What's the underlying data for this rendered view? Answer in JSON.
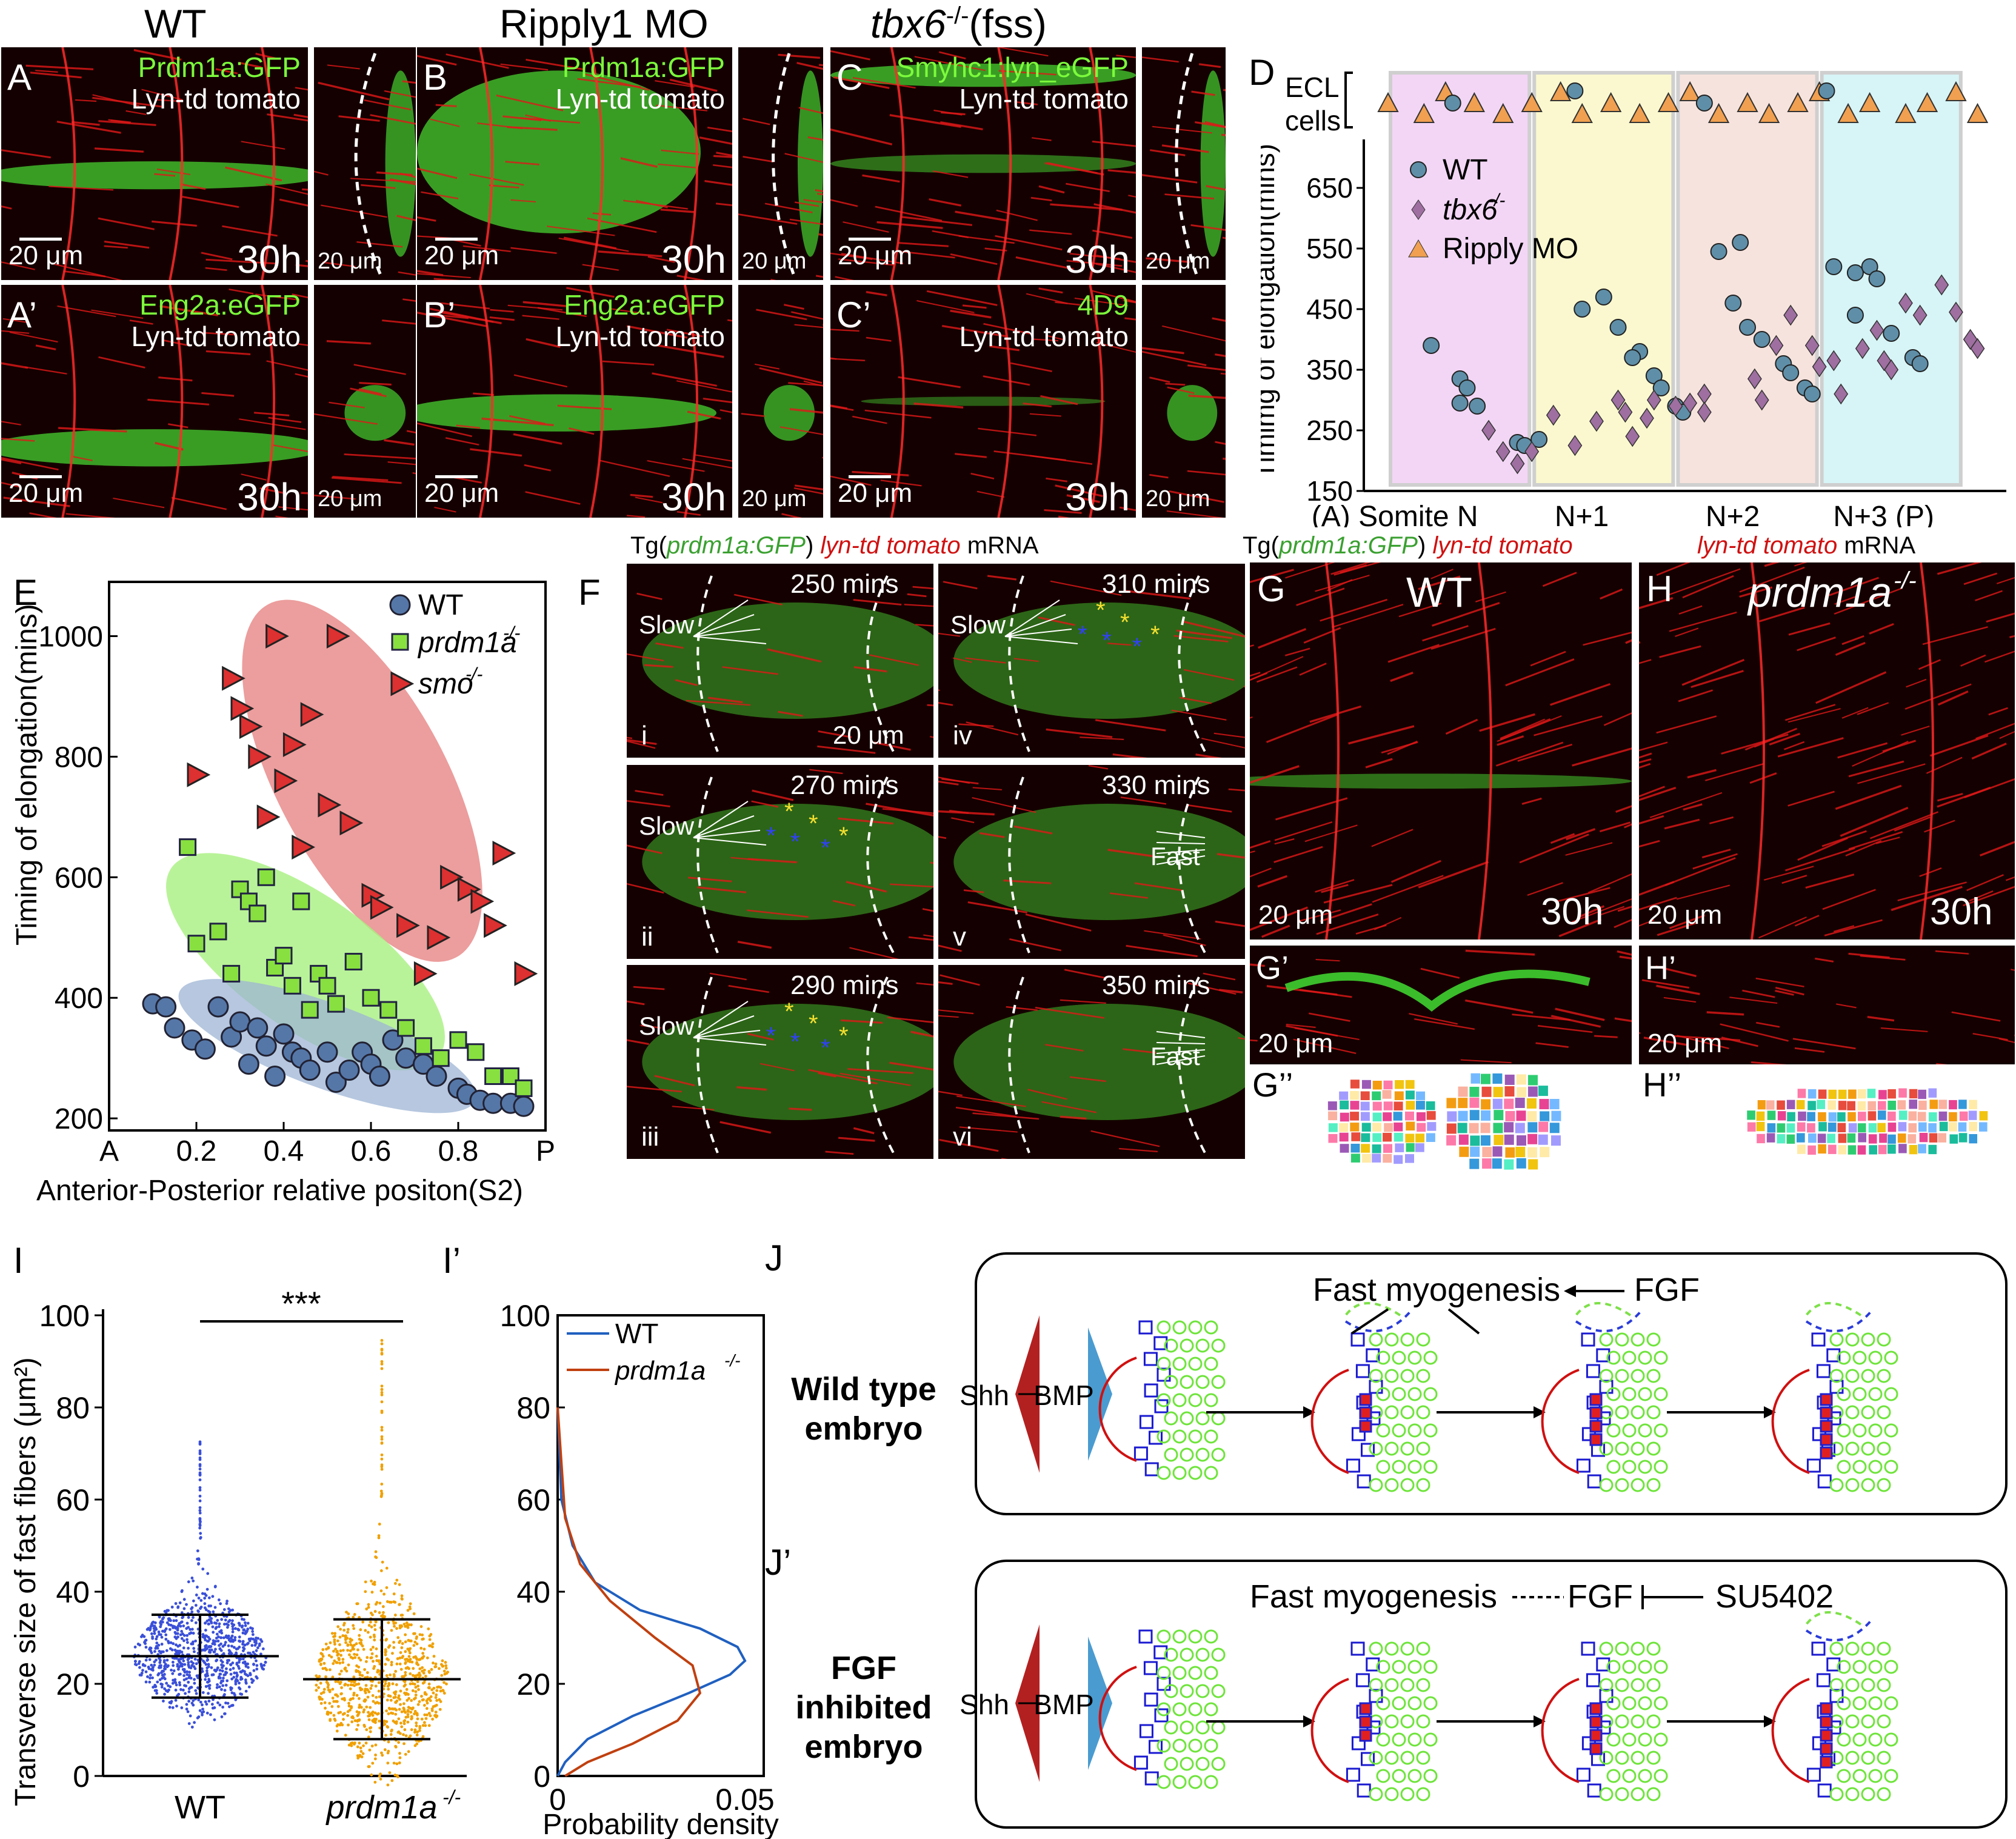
{
  "headers": {
    "wt": "WT",
    "ripply": "Ripply1 MO",
    "tbx6_main": "tbx6",
    "tbx6_sup": "-/-",
    "tbx6_paren": "(fss)"
  },
  "panels": {
    "A": {
      "letter": "A",
      "line1": "Prdm1a:GFP",
      "line2": "Lyn-td tomato",
      "time": "30h",
      "scale": "20 μm",
      "side_scale": "20 μm"
    },
    "B": {
      "letter": "B",
      "line1": "Prdm1a:GFP",
      "line2": "Lyn-td tomato",
      "time": "30h",
      "scale": "20 μm",
      "side_scale": "20 μm"
    },
    "C": {
      "letter": "C",
      "line1": "Smyhc1:lyn_eGFP",
      "line2": "Lyn-td tomato",
      "time": "30h",
      "scale": "20 μm",
      "side_scale": "20 μm"
    },
    "A2": {
      "letter": "A’",
      "line1": "Eng2a:eGFP",
      "line2": "Lyn-td tomato",
      "time": "30h",
      "scale": "20 μm",
      "side_scale": "20 μm"
    },
    "B2": {
      "letter": "B’",
      "line1": "Eng2a:eGFP",
      "line2": "Lyn-td tomato",
      "time": "30h",
      "scale": "20 μm",
      "side_scale": "20 μm"
    },
    "C2": {
      "letter": "C’",
      "line1": "4D9",
      "line2": "Lyn-td tomato",
      "time": "30h",
      "scale": "20 μm",
      "side_scale": "20 μm"
    }
  },
  "panelD": {
    "letter": "D",
    "ecl_label_1": "ECL",
    "ecl_label_2": "cells",
    "ylabel": "Timimg of elongation(mins)",
    "yticks": [
      "650",
      "550",
      "450",
      "350",
      "250",
      "150"
    ],
    "xticks": [
      "(A) Somite N",
      "N+1",
      "N+2",
      "N+3 (P)"
    ],
    "legend": [
      "WT",
      "tbx6",
      "Ripply MO"
    ],
    "legend_sup": "-/-",
    "colors": {
      "wt": "#5f8fa8",
      "tbx6": "#9e6fa0",
      "ripply": "#f0a050",
      "band1": "#f3d6f5",
      "band2": "#fbf8cf",
      "band3": "#f7e3dd",
      "band4": "#d7f4f6"
    }
  },
  "chart_data": [
    {
      "type": "scatter",
      "panel": "D",
      "ylabel": "Timimg of elongation(mins)",
      "xlabel": "",
      "ylim": [
        150,
        700
      ],
      "x_categories": [
        "(A) Somite N",
        "N+1",
        "N+2",
        "N+3 (P)"
      ],
      "series": [
        {
          "name": "WT",
          "points": [
            [
              0.3,
              390
            ],
            [
              0.5,
              335
            ],
            [
              0.55,
              320
            ],
            [
              0.5,
              295
            ],
            [
              0.62,
              290
            ],
            [
              0.9,
              230
            ],
            [
              0.95,
              225
            ],
            [
              1.05,
              235
            ],
            [
              1.35,
              450
            ],
            [
              1.5,
              470
            ],
            [
              1.6,
              420
            ],
            [
              1.75,
              380
            ],
            [
              1.7,
              370
            ],
            [
              1.85,
              340
            ],
            [
              1.9,
              320
            ],
            [
              2.0,
              290
            ],
            [
              2.05,
              280
            ],
            [
              2.3,
              545
            ],
            [
              2.45,
              560
            ],
            [
              2.4,
              460
            ],
            [
              2.5,
              420
            ],
            [
              2.6,
              400
            ],
            [
              2.75,
              360
            ],
            [
              2.8,
              345
            ],
            [
              2.9,
              320
            ],
            [
              2.95,
              310
            ],
            [
              3.1,
              520
            ],
            [
              3.25,
              510
            ],
            [
              3.35,
              520
            ],
            [
              3.4,
              500
            ],
            [
              3.25,
              440
            ],
            [
              3.5,
              410
            ],
            [
              3.65,
              370
            ],
            [
              3.7,
              360
            ]
          ]
        },
        {
          "name": "tbx6",
          "points": [
            [
              0.7,
              250
            ],
            [
              0.8,
              215
            ],
            [
              0.9,
              195
            ],
            [
              1.0,
              215
            ],
            [
              1.15,
              275
            ],
            [
              1.3,
              225
            ],
            [
              1.45,
              265
            ],
            [
              1.6,
              300
            ],
            [
              1.65,
              280
            ],
            [
              1.7,
              240
            ],
            [
              1.8,
              270
            ],
            [
              1.85,
              300
            ],
            [
              2.0,
              290
            ],
            [
              2.1,
              295
            ],
            [
              2.2,
              310
            ],
            [
              2.2,
              280
            ],
            [
              2.55,
              335
            ],
            [
              2.6,
              300
            ],
            [
              2.7,
              390
            ],
            [
              2.8,
              440
            ],
            [
              2.95,
              390
            ],
            [
              3.0,
              355
            ],
            [
              3.1,
              365
            ],
            [
              3.15,
              310
            ],
            [
              3.3,
              385
            ],
            [
              3.4,
              415
            ],
            [
              3.45,
              365
            ],
            [
              3.5,
              350
            ],
            [
              3.6,
              460
            ],
            [
              3.7,
              440
            ],
            [
              3.85,
              490
            ],
            [
              3.95,
              445
            ],
            [
              4.05,
              400
            ],
            [
              4.1,
              385
            ]
          ]
        }
      ],
      "ecl_series": {
        "name": "Ripply MO",
        "points": [
          [
            0.0,
            1
          ],
          [
            0.25,
            2
          ],
          [
            0.4,
            0
          ],
          [
            0.6,
            1
          ],
          [
            0.8,
            2
          ],
          [
            1.0,
            1
          ],
          [
            1.2,
            0
          ],
          [
            1.35,
            2
          ],
          [
            1.55,
            1
          ],
          [
            1.75,
            2
          ],
          [
            1.95,
            1
          ],
          [
            2.1,
            0
          ],
          [
            2.3,
            2
          ],
          [
            2.5,
            1
          ],
          [
            2.65,
            2
          ],
          [
            2.85,
            1
          ],
          [
            3.0,
            0
          ],
          [
            3.2,
            2
          ],
          [
            3.35,
            1
          ],
          [
            3.6,
            2
          ],
          [
            3.75,
            1
          ],
          [
            3.95,
            0
          ],
          [
            4.1,
            2
          ]
        ]
      }
    },
    {
      "type": "scatter",
      "panel": "E",
      "ylabel": "Timing of elongation(mins)",
      "xlabel": "Anterior-Posterior relative positon(S2)",
      "xlim": [
        0,
        1
      ],
      "ylim": [
        180,
        1090
      ],
      "xticks": [
        "A",
        "0.2",
        "0.4",
        "0.6",
        "0.8",
        "P"
      ],
      "yticks": [
        "200",
        "400",
        "600",
        "800",
        "1000"
      ],
      "series": [
        {
          "name": "WT",
          "points": [
            [
              0.1,
              390
            ],
            [
              0.13,
              385
            ],
            [
              0.15,
              350
            ],
            [
              0.19,
              330
            ],
            [
              0.22,
              315
            ],
            [
              0.25,
              385
            ],
            [
              0.28,
              335
            ],
            [
              0.3,
              360
            ],
            [
              0.32,
              290
            ],
            [
              0.34,
              350
            ],
            [
              0.36,
              320
            ],
            [
              0.38,
              270
            ],
            [
              0.4,
              340
            ],
            [
              0.42,
              310
            ],
            [
              0.44,
              300
            ],
            [
              0.46,
              280
            ],
            [
              0.5,
              310
            ],
            [
              0.52,
              260
            ],
            [
              0.55,
              280
            ],
            [
              0.58,
              310
            ],
            [
              0.6,
              290
            ],
            [
              0.62,
              270
            ],
            [
              0.65,
              330
            ],
            [
              0.68,
              300
            ],
            [
              0.72,
              290
            ],
            [
              0.75,
              270
            ],
            [
              0.8,
              250
            ],
            [
              0.82,
              240
            ],
            [
              0.85,
              230
            ],
            [
              0.88,
              225
            ],
            [
              0.92,
              225
            ],
            [
              0.95,
              220
            ]
          ]
        },
        {
          "name": "prdm1a-/-",
          "points": [
            [
              0.18,
              650
            ],
            [
              0.2,
              490
            ],
            [
              0.25,
              510
            ],
            [
              0.28,
              440
            ],
            [
              0.3,
              580
            ],
            [
              0.32,
              560
            ],
            [
              0.34,
              540
            ],
            [
              0.36,
              600
            ],
            [
              0.38,
              450
            ],
            [
              0.4,
              470
            ],
            [
              0.42,
              420
            ],
            [
              0.44,
              560
            ],
            [
              0.46,
              380
            ],
            [
              0.48,
              440
            ],
            [
              0.5,
              420
            ],
            [
              0.52,
              390
            ],
            [
              0.56,
              460
            ],
            [
              0.6,
              400
            ],
            [
              0.64,
              380
            ],
            [
              0.68,
              350
            ],
            [
              0.72,
              320
            ],
            [
              0.76,
              300
            ],
            [
              0.8,
              330
            ],
            [
              0.84,
              310
            ],
            [
              0.88,
              270
            ],
            [
              0.92,
              270
            ],
            [
              0.95,
              250
            ]
          ]
        },
        {
          "name": "smo-/-",
          "points": [
            [
              0.2,
              770
            ],
            [
              0.28,
              930
            ],
            [
              0.3,
              880
            ],
            [
              0.32,
              850
            ],
            [
              0.34,
              800
            ],
            [
              0.36,
              700
            ],
            [
              0.38,
              1000
            ],
            [
              0.4,
              760
            ],
            [
              0.42,
              820
            ],
            [
              0.44,
              650
            ],
            [
              0.46,
              870
            ],
            [
              0.5,
              720
            ],
            [
              0.52,
              1000
            ],
            [
              0.55,
              690
            ],
            [
              0.6,
              570
            ],
            [
              0.62,
              550
            ],
            [
              0.68,
              520
            ],
            [
              0.72,
              440
            ],
            [
              0.75,
              500
            ],
            [
              0.78,
              600
            ],
            [
              0.82,
              580
            ],
            [
              0.85,
              560
            ],
            [
              0.88,
              520
            ],
            [
              0.9,
              640
            ],
            [
              0.95,
              440
            ]
          ]
        }
      ]
    },
    {
      "type": "scatter",
      "panel": "I",
      "ylabel": "Transverse size of fast fibers (μm²)",
      "categories": [
        "WT",
        "prdm1a-/-"
      ],
      "ylim": [
        0,
        100
      ],
      "yticks": [
        "0",
        "20",
        "40",
        "60",
        "80",
        "100"
      ],
      "summary": [
        {
          "name": "WT",
          "mean": 26,
          "sd_low": 17,
          "sd_high": 35,
          "max": 73
        },
        {
          "name": "prdm1a-/-",
          "mean": 21,
          "sd_low": 8,
          "sd_high": 34,
          "max": 96
        }
      ],
      "significance": "***"
    },
    {
      "type": "line",
      "panel": "I’",
      "xlabel": "Probability density",
      "xticks": [
        "0",
        "0.05"
      ],
      "yticks": [
        "0",
        "20",
        "40",
        "60",
        "80",
        "100"
      ],
      "xlim": [
        0,
        0.055
      ],
      "ylim": [
        0,
        100
      ],
      "series": [
        {
          "name": "WT",
          "x": [
            0.0,
            0.002,
            0.008,
            0.02,
            0.035,
            0.046,
            0.05,
            0.048,
            0.038,
            0.022,
            0.01,
            0.004,
            0.001,
            0.0
          ],
          "y": [
            0,
            3,
            8,
            13,
            18,
            22,
            25,
            28,
            32,
            36,
            42,
            50,
            60,
            80
          ]
        },
        {
          "name": "prdm1a-/-",
          "x": [
            0.002,
            0.008,
            0.02,
            0.032,
            0.038,
            0.036,
            0.026,
            0.014,
            0.006,
            0.002,
            0.0
          ],
          "y": [
            0,
            3,
            7,
            12,
            18,
            24,
            30,
            38,
            46,
            56,
            80
          ]
        }
      ]
    }
  ],
  "panelE": {
    "letter": "E",
    "legend": [
      "WT",
      "prdm1a",
      "smo"
    ],
    "legend_sup": "-/-",
    "colors": {
      "wt": "#5577a8",
      "prdm1a": "#88e040",
      "smo": "#dd3030"
    }
  },
  "panelF": {
    "letter": "F",
    "title_pre": "Tg(",
    "title_it": "prdm1a:GFP",
    "title_post": ")",
    "title_red": "lyn-td tomato",
    "title_end": "mRNA",
    "subs": [
      {
        "roman": "i",
        "time": "250 mins",
        "tag": "Slow"
      },
      {
        "roman": "ii",
        "time": "270 mins",
        "tag": "Slow"
      },
      {
        "roman": "iii",
        "time": "290 mins",
        "tag": "Slow"
      },
      {
        "roman": "iv",
        "time": "310 mins",
        "tag": "Slow"
      },
      {
        "roman": "v",
        "time": "330 mins",
        "tag": "Fast"
      },
      {
        "roman": "vi",
        "time": "350 mins",
        "tag": "Fast"
      }
    ],
    "scale": "20 μm"
  },
  "panelGH": {
    "title_left_pre": "Tg(",
    "title_left_it": "prdm1a:GFP",
    "title_left_post": ")",
    "title_left_red": "lyn-td tomato",
    "title_right_red": "lyn-td tomato",
    "title_right_end": "mRNA",
    "G": {
      "letter": "G",
      "label": "WT",
      "time": "30h",
      "scale": "20 μm"
    },
    "H": {
      "letter": "H",
      "label": "prdm1a",
      "sup": "-/-",
      "time": "30h",
      "scale": "20 μm"
    },
    "G2": {
      "letter": "G’",
      "scale": "20 μm"
    },
    "H2": {
      "letter": "H’",
      "scale": "20 μm"
    },
    "G3": {
      "letter": "G’’"
    },
    "H3": {
      "letter": "H’’"
    }
  },
  "panelI": {
    "letter": "I",
    "letter2": "I’",
    "ylabel": "Transverse size of fast fibers (μm²)",
    "xlabel_wt": "WT",
    "xlabel_mut": "prdm1a",
    "sup": "-/-",
    "sig": "***",
    "density_label": "Probability density",
    "legend_wt": "WT",
    "legend_mut": "prdm1a",
    "colors": {
      "wt": "#3a4fd8",
      "mut": "#f0a000",
      "wt_line": "#2060c0",
      "mut_line": "#c04010"
    }
  },
  "panelJ": {
    "letter": "J",
    "letter2": "J’",
    "row1_label_1": "Wild type",
    "row1_label_2": "embryo",
    "row2_label_1": "FGF",
    "row2_label_2": "inhibited",
    "row2_label_3": "embryo",
    "shh": "Shh",
    "bmp": "BMP",
    "fast": "Fast myogenesis",
    "fgf": "FGF",
    "su": "SU5402"
  }
}
